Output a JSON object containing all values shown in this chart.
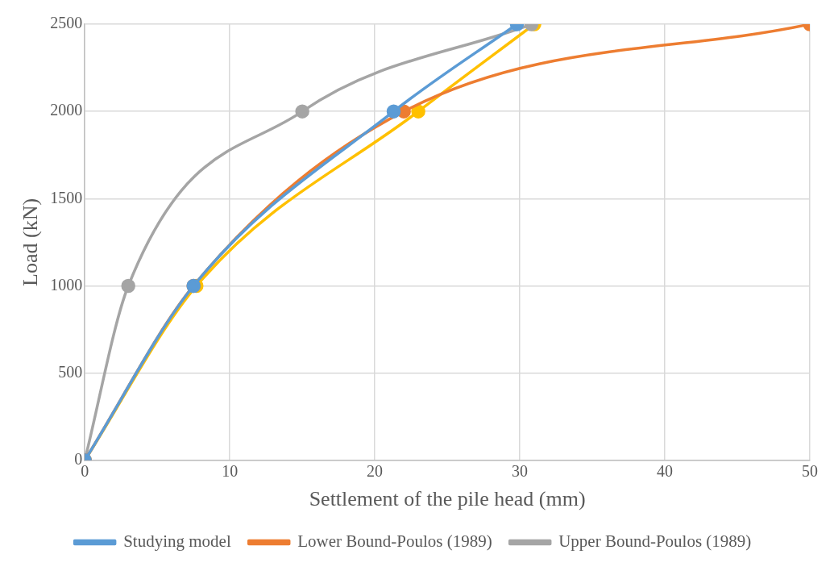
{
  "chart_data": {
    "type": "line",
    "xlabel": "Settlement of the pile head (mm)",
    "ylabel": "Load (kN)",
    "xlim": [
      0,
      50
    ],
    "xticks": [
      0,
      10,
      20,
      30,
      40,
      50
    ],
    "ylim": [
      0,
      2500
    ],
    "yticks": [
      0,
      500,
      1000,
      1500,
      2000,
      2500
    ],
    "grid": true,
    "legend": "bottom",
    "marker": "circle",
    "line_style": "solid",
    "series": [
      {
        "name": "Studying model",
        "color": "#5b9bd5",
        "x": [
          0,
          7.5,
          21.3,
          29.8
        ],
        "values": [
          0,
          1000,
          2000,
          2500
        ]
      },
      {
        "name": "Lower Bound-Poulos (1989)",
        "color": "#ed7d31",
        "x": [
          0,
          7.5,
          22,
          50
        ],
        "values": [
          0,
          1000,
          2000,
          2500
        ]
      },
      {
        "name": "Upper Bound-Poulos (1989)",
        "color": "#a5a5a5",
        "x": [
          0,
          3,
          15,
          30.8
        ],
        "values": [
          0,
          1000,
          2000,
          2500
        ]
      },
      {
        "color": "#ffc000",
        "x": [
          0,
          7.7,
          23,
          31
        ],
        "values": [
          0,
          1000,
          2000,
          2500
        ]
      }
    ]
  }
}
